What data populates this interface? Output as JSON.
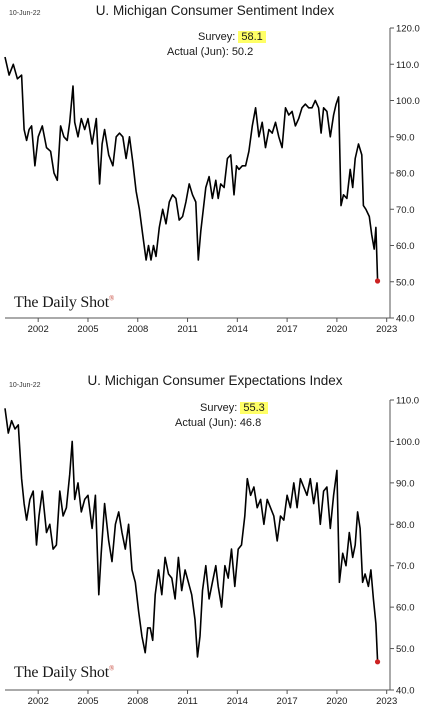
{
  "chart_data": [
    {
      "type": "line",
      "date_stamp": "10-Jun-22",
      "title": "U. Michigan Consumer Sentiment Index",
      "annotation": {
        "survey_label": "Survey:",
        "survey_value": "58.1",
        "actual_label": "Actual (Jun):",
        "actual_value": "50.2",
        "highlight_color": "#ffff66"
      },
      "brand": "The Daily Shot",
      "brand_mark": "®",
      "xlim": [
        2000.0,
        2023.2
      ],
      "ylim": [
        40,
        120
      ],
      "x_ticks": [
        2002,
        2005,
        2008,
        2011,
        2014,
        2017,
        2020,
        2023
      ],
      "y_ticks": [
        "40.0",
        "50.0",
        "60.0",
        "70.0",
        "80.0",
        "90.0",
        "100.0",
        "110.0",
        "120.0"
      ],
      "line_color": "#000000",
      "marker_color": "#cc2222",
      "series": [
        {
          "values": [
            [
              2000.0,
              112
            ],
            [
              2000.25,
              107
            ],
            [
              2000.5,
              110
            ],
            [
              2000.75,
              106
            ],
            [
              2001.0,
              107
            ],
            [
              2001.15,
              92
            ],
            [
              2001.3,
              89
            ],
            [
              2001.45,
              92
            ],
            [
              2001.6,
              93
            ],
            [
              2001.8,
              82
            ],
            [
              2002.0,
              90
            ],
            [
              2002.25,
              93
            ],
            [
              2002.5,
              87
            ],
            [
              2002.75,
              86
            ],
            [
              2002.95,
              80
            ],
            [
              2003.15,
              78
            ],
            [
              2003.35,
              93
            ],
            [
              2003.55,
              90
            ],
            [
              2003.75,
              89
            ],
            [
              2003.9,
              94
            ],
            [
              2004.1,
              104
            ],
            [
              2004.2,
              94
            ],
            [
              2004.4,
              90
            ],
            [
              2004.6,
              95
            ],
            [
              2004.8,
              92
            ],
            [
              2005.0,
              95
            ],
            [
              2005.25,
              88
            ],
            [
              2005.5,
              95
            ],
            [
              2005.7,
              77
            ],
            [
              2005.85,
              88
            ],
            [
              2006.0,
              92
            ],
            [
              2006.25,
              85
            ],
            [
              2006.5,
              82
            ],
            [
              2006.7,
              90
            ],
            [
              2006.9,
              91
            ],
            [
              2007.1,
              90
            ],
            [
              2007.3,
              84
            ],
            [
              2007.5,
              90
            ],
            [
              2007.7,
              83
            ],
            [
              2007.9,
              75
            ],
            [
              2008.1,
              70
            ],
            [
              2008.3,
              63
            ],
            [
              2008.5,
              56
            ],
            [
              2008.65,
              60
            ],
            [
              2008.8,
              56
            ],
            [
              2008.95,
              60
            ],
            [
              2009.1,
              57
            ],
            [
              2009.3,
              65
            ],
            [
              2009.5,
              70
            ],
            [
              2009.7,
              66
            ],
            [
              2009.9,
              72
            ],
            [
              2010.1,
              74
            ],
            [
              2010.3,
              73
            ],
            [
              2010.5,
              67
            ],
            [
              2010.7,
              68
            ],
            [
              2010.9,
              72
            ],
            [
              2011.1,
              77
            ],
            [
              2011.3,
              74
            ],
            [
              2011.5,
              72
            ],
            [
              2011.65,
              56
            ],
            [
              2011.8,
              64
            ],
            [
              2011.95,
              70
            ],
            [
              2012.1,
              76
            ],
            [
              2012.3,
              79
            ],
            [
              2012.5,
              73
            ],
            [
              2012.7,
              78
            ],
            [
              2012.85,
              73
            ],
            [
              2013.0,
              77
            ],
            [
              2013.2,
              76
            ],
            [
              2013.4,
              84
            ],
            [
              2013.6,
              85
            ],
            [
              2013.8,
              74
            ],
            [
              2013.95,
              82
            ],
            [
              2014.1,
              81
            ],
            [
              2014.3,
              82
            ],
            [
              2014.5,
              82
            ],
            [
              2014.7,
              86
            ],
            [
              2014.9,
              93
            ],
            [
              2015.1,
              98
            ],
            [
              2015.3,
              90
            ],
            [
              2015.5,
              94
            ],
            [
              2015.7,
              87
            ],
            [
              2015.9,
              92
            ],
            [
              2016.1,
              91
            ],
            [
              2016.3,
              94
            ],
            [
              2016.5,
              90
            ],
            [
              2016.7,
              87
            ],
            [
              2016.9,
              98
            ],
            [
              2017.1,
              96
            ],
            [
              2017.3,
              97
            ],
            [
              2017.5,
              93
            ],
            [
              2017.7,
              95
            ],
            [
              2017.9,
              98
            ],
            [
              2018.1,
              99
            ],
            [
              2018.3,
              98
            ],
            [
              2018.5,
              98
            ],
            [
              2018.7,
              100
            ],
            [
              2018.9,
              98
            ],
            [
              2019.05,
              91
            ],
            [
              2019.2,
              98
            ],
            [
              2019.4,
              97
            ],
            [
              2019.6,
              90
            ],
            [
              2019.8,
              96
            ],
            [
              2019.95,
              99
            ],
            [
              2020.1,
              101
            ],
            [
              2020.25,
              71
            ],
            [
              2020.4,
              74
            ],
            [
              2020.6,
              73
            ],
            [
              2020.8,
              81
            ],
            [
              2020.95,
              76
            ],
            [
              2021.1,
              84
            ],
            [
              2021.3,
              88
            ],
            [
              2021.5,
              85
            ],
            [
              2021.6,
              71
            ],
            [
              2021.75,
              70
            ],
            [
              2021.95,
              68
            ],
            [
              2022.1,
              63
            ],
            [
              2022.25,
              59
            ],
            [
              2022.35,
              65
            ],
            [
              2022.45,
              50.2
            ]
          ]
        }
      ]
    },
    {
      "type": "line",
      "date_stamp": "10-Jun-22",
      "title": "U. Michigan Consumer Expectations Index",
      "annotation": {
        "survey_label": "Survey:",
        "survey_value": "55.3",
        "actual_label": "Actual (Jun):",
        "actual_value": "46.8",
        "highlight_color": "#ffff66"
      },
      "brand": "The Daily Shot",
      "brand_mark": "®",
      "xlim": [
        2000.0,
        2023.2
      ],
      "ylim": [
        40,
        110
      ],
      "x_ticks": [
        2002,
        2005,
        2008,
        2011,
        2014,
        2017,
        2020,
        2023
      ],
      "y_ticks": [
        "40.0",
        "50.0",
        "60.0",
        "70.0",
        "80.0",
        "90.0",
        "100.0",
        "110.0"
      ],
      "line_color": "#000000",
      "marker_color": "#cc2222",
      "series": [
        {
          "values": [
            [
              2000.0,
              108
            ],
            [
              2000.2,
              102
            ],
            [
              2000.4,
              105
            ],
            [
              2000.6,
              103
            ],
            [
              2000.8,
              104
            ],
            [
              2001.0,
              91
            ],
            [
              2001.15,
              85
            ],
            [
              2001.3,
              81
            ],
            [
              2001.5,
              86
            ],
            [
              2001.7,
              88
            ],
            [
              2001.9,
              75
            ],
            [
              2002.05,
              82
            ],
            [
              2002.25,
              88
            ],
            [
              2002.5,
              78
            ],
            [
              2002.7,
              80
            ],
            [
              2002.9,
              74
            ],
            [
              2003.1,
              75
            ],
            [
              2003.3,
              88
            ],
            [
              2003.5,
              82
            ],
            [
              2003.7,
              84
            ],
            [
              2003.9,
              92
            ],
            [
              2004.05,
              100
            ],
            [
              2004.2,
              86
            ],
            [
              2004.4,
              90
            ],
            [
              2004.6,
              83
            ],
            [
              2004.8,
              86
            ],
            [
              2005.0,
              87
            ],
            [
              2005.25,
              79
            ],
            [
              2005.45,
              87
            ],
            [
              2005.65,
              63
            ],
            [
              2005.8,
              73
            ],
            [
              2006.0,
              85
            ],
            [
              2006.25,
              76
            ],
            [
              2006.45,
              71
            ],
            [
              2006.65,
              80
            ],
            [
              2006.85,
              83
            ],
            [
              2007.05,
              78
            ],
            [
              2007.25,
              74
            ],
            [
              2007.45,
              80
            ],
            [
              2007.65,
              69
            ],
            [
              2007.85,
              66
            ],
            [
              2008.05,
              59
            ],
            [
              2008.25,
              53
            ],
            [
              2008.45,
              49
            ],
            [
              2008.6,
              55
            ],
            [
              2008.75,
              55
            ],
            [
              2008.9,
              52
            ],
            [
              2009.05,
              63
            ],
            [
              2009.25,
              69
            ],
            [
              2009.45,
              63
            ],
            [
              2009.65,
              72
            ],
            [
              2009.85,
              68
            ],
            [
              2010.05,
              67
            ],
            [
              2010.25,
              62
            ],
            [
              2010.45,
              72
            ],
            [
              2010.65,
              64
            ],
            [
              2010.85,
              69
            ],
            [
              2011.05,
              66
            ],
            [
              2011.25,
              63
            ],
            [
              2011.45,
              57
            ],
            [
              2011.6,
              48
            ],
            [
              2011.75,
              53
            ],
            [
              2011.9,
              64
            ],
            [
              2012.1,
              70
            ],
            [
              2012.3,
              62
            ],
            [
              2012.5,
              66
            ],
            [
              2012.7,
              70
            ],
            [
              2012.85,
              65
            ],
            [
              2013.05,
              60
            ],
            [
              2013.25,
              70
            ],
            [
              2013.45,
              67
            ],
            [
              2013.65,
              74
            ],
            [
              2013.85,
              65
            ],
            [
              2014.05,
              74
            ],
            [
              2014.25,
              75
            ],
            [
              2014.45,
              82
            ],
            [
              2014.6,
              91
            ],
            [
              2014.8,
              87
            ],
            [
              2015.0,
              89
            ],
            [
              2015.2,
              84
            ],
            [
              2015.4,
              86
            ],
            [
              2015.6,
              80
            ],
            [
              2015.8,
              86
            ],
            [
              2016.0,
              84
            ],
            [
              2016.2,
              82
            ],
            [
              2016.4,
              76
            ],
            [
              2016.6,
              82
            ],
            [
              2016.8,
              81
            ],
            [
              2017.0,
              87
            ],
            [
              2017.2,
              84
            ],
            [
              2017.4,
              90
            ],
            [
              2017.6,
              84
            ],
            [
              2017.8,
              91
            ],
            [
              2018.0,
              89
            ],
            [
              2018.2,
              87
            ],
            [
              2018.4,
              91
            ],
            [
              2018.6,
              85
            ],
            [
              2018.8,
              90
            ],
            [
              2019.0,
              80
            ],
            [
              2019.2,
              88
            ],
            [
              2019.4,
              89
            ],
            [
              2019.6,
              79
            ],
            [
              2019.8,
              87
            ],
            [
              2020.0,
              93
            ],
            [
              2020.15,
              66
            ],
            [
              2020.35,
              73
            ],
            [
              2020.55,
              70
            ],
            [
              2020.75,
              78
            ],
            [
              2020.95,
              72
            ],
            [
              2021.1,
              75
            ],
            [
              2021.25,
              83
            ],
            [
              2021.4,
              79
            ],
            [
              2021.55,
              66
            ],
            [
              2021.7,
              68
            ],
            [
              2021.9,
              65
            ],
            [
              2022.05,
              69
            ],
            [
              2022.2,
              62
            ],
            [
              2022.35,
              56
            ],
            [
              2022.45,
              46.8
            ]
          ]
        }
      ]
    }
  ]
}
